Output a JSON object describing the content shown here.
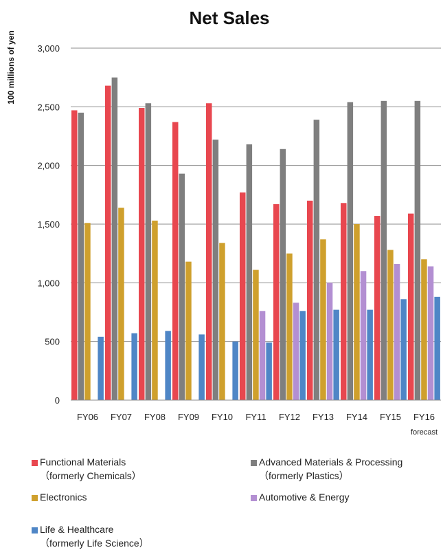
{
  "chart_data": {
    "type": "bar",
    "title": "Net Sales",
    "ylabel": "100 millions of yen",
    "xlabel": "",
    "ylim": [
      0,
      3000
    ],
    "yticks": [
      0,
      500,
      1000,
      1500,
      2000,
      2500,
      3000
    ],
    "ytick_labels": [
      "0",
      "500",
      "1,000",
      "1,500",
      "2,000",
      "2,500",
      "3,000"
    ],
    "grid": true,
    "legend_position": "bottom",
    "categories": [
      "FY06",
      "FY07",
      "FY08",
      "FY09",
      "FY10",
      "FY11",
      "FY12",
      "FY13",
      "FY14",
      "FY15",
      "FY16"
    ],
    "category_sublabels": [
      "",
      "",
      "",
      "",
      "",
      "",
      "",
      "",
      "",
      "",
      "forecast"
    ],
    "series": [
      {
        "name": "Functional Materials",
        "name_line2": "（formerly Chemicals）",
        "color": "#e8474f",
        "values": [
          2470,
          2680,
          2490,
          2370,
          2530,
          1770,
          1670,
          1700,
          1680,
          1570,
          1590
        ]
      },
      {
        "name": "Advanced Materials & Processing",
        "name_line2": "（formerly Plastics）",
        "color": "#7f7f7f",
        "values": [
          2450,
          2750,
          2530,
          1930,
          2220,
          2180,
          2140,
          2390,
          2540,
          2550,
          2550
        ]
      },
      {
        "name": "Electronics",
        "name_line2": "",
        "color": "#cfa02d",
        "values": [
          1510,
          1640,
          1530,
          1180,
          1340,
          1110,
          1250,
          1370,
          1500,
          1280,
          1200
        ]
      },
      {
        "name": "Automotive & Energy",
        "name_line2": "",
        "color": "#b38fd2",
        "values": [
          null,
          null,
          null,
          null,
          null,
          760,
          830,
          1000,
          1100,
          1160,
          1140
        ]
      },
      {
        "name": "Life & Healthcare",
        "name_line2": "（formerly Life Science）",
        "color": "#4f86c6",
        "values": [
          540,
          570,
          590,
          560,
          500,
          490,
          760,
          770,
          770,
          860,
          880
        ]
      }
    ]
  }
}
